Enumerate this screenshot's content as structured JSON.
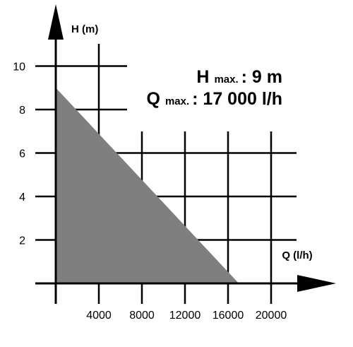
{
  "chart_data": {
    "type": "area",
    "xlabel": "Q (l/h)",
    "ylabel": "H (m)",
    "x_ticks": [
      "4000",
      "8000",
      "12000",
      "16000",
      "20000"
    ],
    "y_ticks": [
      "2",
      "4",
      "6",
      "8",
      "10"
    ],
    "xlim": [
      0,
      22000
    ],
    "ylim": [
      0,
      11
    ],
    "grid": true,
    "series": [
      {
        "x": [
          0,
          0,
          17000
        ],
        "y": [
          0,
          9,
          0
        ]
      }
    ],
    "annotations": {
      "hmax": {
        "main": "H",
        "sub": "max.",
        "value": ": 9 m"
      },
      "qmax": {
        "main": "Q",
        "sub": "max.",
        "value": ": 17 000 l/h"
      }
    },
    "colors": {
      "fill": "#7f7f7f",
      "grid": "#000000"
    }
  }
}
